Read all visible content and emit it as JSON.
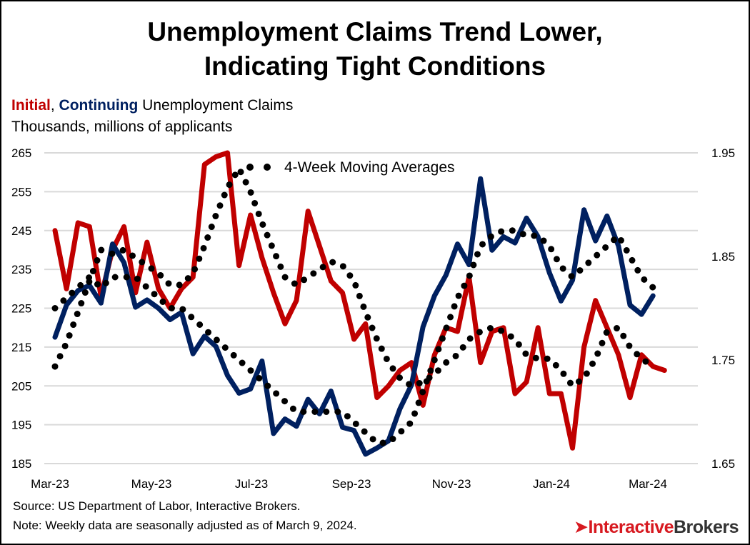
{
  "title_line1": "Unemployment Claims Trend Lower,",
  "title_line2": "Indicating Tight Conditions",
  "subtitle": {
    "initial": "Initial",
    "comma": ",",
    "continuing": "Continuing",
    "rest": "Unemployment Claims"
  },
  "units": "Thousands, millions of applicants",
  "source": "Source: US Department of Labor, Interactive Brokers.",
  "note": "Note: Weekly data are seasonally adjusted as of March 9, 2024.",
  "logo": "InteractiveBrokers",
  "colors": {
    "initial": "#c00000",
    "continuing": "#002060",
    "moving_average": "#000000",
    "grid": "#d9d9d9"
  },
  "chart_data": {
    "type": "line",
    "grid": true,
    "legend": {
      "label": "4-Week Moving Averages",
      "placement": "top-center"
    },
    "x_tick_labels": [
      "Mar-23",
      "May-23",
      "Jul-23",
      "Sep-23",
      "Nov-23",
      "Jan-24",
      "Mar-24"
    ],
    "x_start": "2023-03-04",
    "x_end": "2024-03-09",
    "frequency": "weekly",
    "y_left": {
      "range": [
        185,
        265
      ],
      "ticks": [
        185,
        195,
        205,
        215,
        225,
        235,
        245,
        255,
        265
      ]
    },
    "y_right": {
      "range": [
        1.65,
        1.95
      ],
      "ticks": [
        "1.65",
        "1.75",
        "1.85",
        "1.95"
      ]
    },
    "series": [
      {
        "name": "Initial",
        "axis": "left",
        "style": "solid",
        "values": [
          245,
          230,
          247,
          246,
          228,
          240,
          246,
          229,
          242,
          230,
          225,
          230,
          233,
          262,
          264,
          265,
          236,
          249,
          238,
          229,
          221,
          227,
          250,
          241,
          232,
          229,
          217,
          221,
          202,
          205,
          209,
          211,
          200,
          213,
          220,
          219,
          233,
          211,
          219,
          220,
          203,
          206,
          220,
          203,
          203,
          189,
          215,
          227,
          220,
          213,
          202,
          213,
          210,
          209
        ]
      },
      {
        "name": "Continuing",
        "axis": "right",
        "style": "solid",
        "values": [
          1.772,
          1.803,
          1.817,
          1.822,
          1.805,
          1.862,
          1.844,
          1.801,
          1.808,
          1.8,
          1.789,
          1.796,
          1.756,
          1.773,
          1.763,
          1.735,
          1.718,
          1.722,
          1.749,
          1.679,
          1.693,
          1.686,
          1.712,
          1.698,
          1.72,
          1.685,
          1.682,
          1.659,
          1.665,
          1.672,
          1.703,
          1.726,
          1.782,
          1.812,
          1.832,
          1.862,
          1.842,
          1.925,
          1.856,
          1.869,
          1.863,
          1.887,
          1.869,
          1.834,
          1.807,
          1.827,
          1.895,
          1.865,
          1.889,
          1.86,
          1.803,
          1.794,
          1.812
        ]
      },
      {
        "axis": "left",
        "style": "dotted",
        "values": [
          210,
          216,
          224,
          232,
          240,
          239,
          240,
          238,
          236,
          234,
          231,
          231,
          234,
          241,
          249,
          256,
          261,
          255,
          247,
          240,
          233,
          231,
          233,
          235,
          237,
          236,
          232,
          224,
          217,
          211,
          207,
          205,
          206,
          208,
          211,
          213,
          217,
          219,
          220,
          219,
          217,
          213,
          212,
          212,
          209,
          205,
          207,
          212,
          219,
          220,
          215,
          212,
          210
        ]
      },
      {
        "axis": "right",
        "style": "dotted",
        "values": [
          1.8,
          1.81,
          1.82,
          1.83,
          1.82,
          1.83,
          1.83,
          1.83,
          1.82,
          1.81,
          1.8,
          1.8,
          1.79,
          1.78,
          1.77,
          1.76,
          1.75,
          1.74,
          1.73,
          1.72,
          1.71,
          1.7,
          1.7,
          1.7,
          1.7,
          1.7,
          1.69,
          1.68,
          1.67,
          1.67,
          1.68,
          1.69,
          1.72,
          1.75,
          1.78,
          1.81,
          1.83,
          1.86,
          1.87,
          1.875,
          1.875,
          1.87,
          1.87,
          1.86,
          1.84,
          1.83,
          1.84,
          1.85,
          1.86,
          1.87,
          1.85,
          1.83,
          1.82
        ]
      }
    ]
  }
}
